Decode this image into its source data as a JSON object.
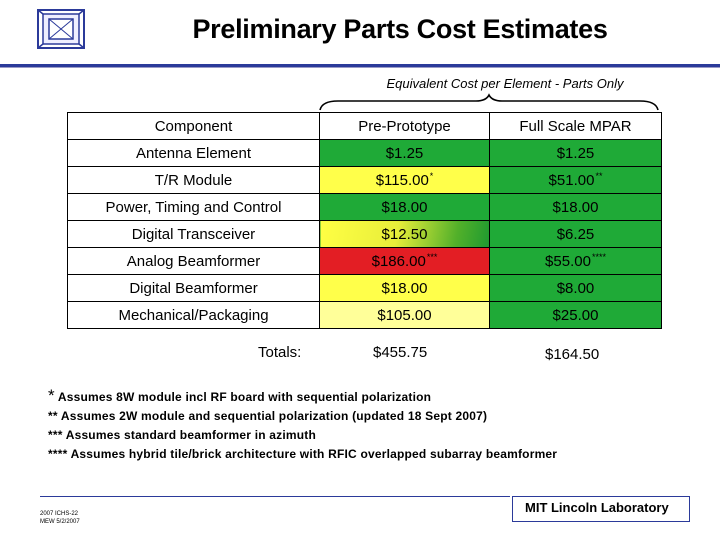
{
  "header": {
    "title": "Preliminary Parts Cost Estimates"
  },
  "subheading": "Equivalent Cost per Element - Parts Only",
  "table": {
    "headers": [
      "Component",
      "Pre-Prototype",
      "Full Scale MPAR"
    ],
    "rows": [
      {
        "component": "Antenna Element",
        "pre": "$1.25",
        "pre_sup": "",
        "full": "$1.25",
        "full_sup": ""
      },
      {
        "component": "T/R Module",
        "pre": "$115.00",
        "pre_sup": "*",
        "full": "$51.00",
        "full_sup": "**"
      },
      {
        "component": "Power, Timing and Control",
        "pre": "$18.00",
        "pre_sup": "",
        "full": "$18.00",
        "full_sup": ""
      },
      {
        "component": "Digital Transceiver",
        "pre": "$12.50",
        "pre_sup": "",
        "full": "$6.25",
        "full_sup": ""
      },
      {
        "component": "Analog Beamformer",
        "pre": "$186.00",
        "pre_sup": "***",
        "full": "$55.00",
        "full_sup": "****"
      },
      {
        "component": "Digital Beamformer",
        "pre": "$18.00",
        "pre_sup": "",
        "full": "$8.00",
        "full_sup": ""
      },
      {
        "component": "Mechanical/Packaging",
        "pre": "$105.00",
        "pre_sup": "",
        "full": "$25.00",
        "full_sup": ""
      }
    ]
  },
  "totals": {
    "label": "Totals:",
    "pre": "$455.75",
    "full": "$164.50"
  },
  "notes": {
    "n1_mark": "*",
    "n1_text": "Assumes 8W module incl RF board with sequential polarization",
    "n2": "** Assumes 2W module and sequential polarization (updated 18 Sept 2007)",
    "n3": "*** Assumes standard beamformer in azimuth",
    "n4": "**** Assumes hybrid tile/brick architecture with RFIC overlapped subarray beamformer"
  },
  "footer": {
    "code_line1": "2007 ICHS-22",
    "code_line2": "MEW 5/2/2007",
    "lab": "MIT Lincoln Laboratory"
  },
  "colors": {
    "green": "#1faa37",
    "yellow": "#ffff4a",
    "light_yellow": "#ffff99",
    "red": "#e31e24",
    "rule_blue": "#2b3a9a"
  }
}
